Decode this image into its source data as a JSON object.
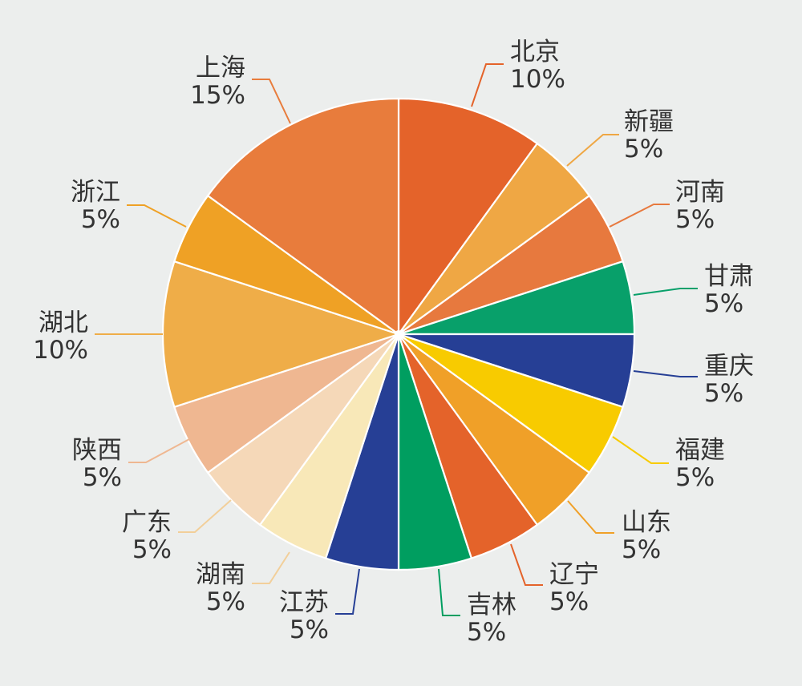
{
  "chart_data": {
    "type": "pie",
    "unit": "%",
    "slices": [
      {
        "label": "北京",
        "value": 10,
        "value_label": "10%",
        "color": "#e4632a"
      },
      {
        "label": "新疆",
        "value": 5,
        "value_label": "5%",
        "color": "#efa744"
      },
      {
        "label": "河南",
        "value": 5,
        "value_label": "5%",
        "color": "#e7793e"
      },
      {
        "label": "甘肃",
        "value": 5,
        "value_label": "5%",
        "color": "#08a06a"
      },
      {
        "label": "重庆",
        "value": 5,
        "value_label": "5%",
        "color": "#263f95"
      },
      {
        "label": "福建",
        "value": 5,
        "value_label": "5%",
        "color": "#f8cb00"
      },
      {
        "label": "山东",
        "value": 5,
        "value_label": "5%",
        "color": "#f0a028"
      },
      {
        "label": "辽宁",
        "value": 5,
        "value_label": "5%",
        "color": "#e4632a"
      },
      {
        "label": "吉林",
        "value": 5,
        "value_label": "5%",
        "color": "#009e60"
      },
      {
        "label": "江苏",
        "value": 5,
        "value_label": "5%",
        "color": "#263f95"
      },
      {
        "label": "湖南",
        "value": 5,
        "value_label": "5%",
        "color": "#f8e8b8"
      },
      {
        "label": "广东",
        "value": 5,
        "value_label": "5%",
        "color": "#f5d8b8"
      },
      {
        "label": "陕西",
        "value": 5,
        "value_label": "5%",
        "color": "#efb791"
      },
      {
        "label": "湖北",
        "value": 10,
        "value_label": "10%",
        "color": "#efad48"
      },
      {
        "label": "浙江",
        "value": 5,
        "value_label": "5%",
        "color": "#efa125"
      },
      {
        "label": "上海",
        "value": 15,
        "value_label": "15%",
        "color": "#e87c3c"
      }
    ]
  }
}
